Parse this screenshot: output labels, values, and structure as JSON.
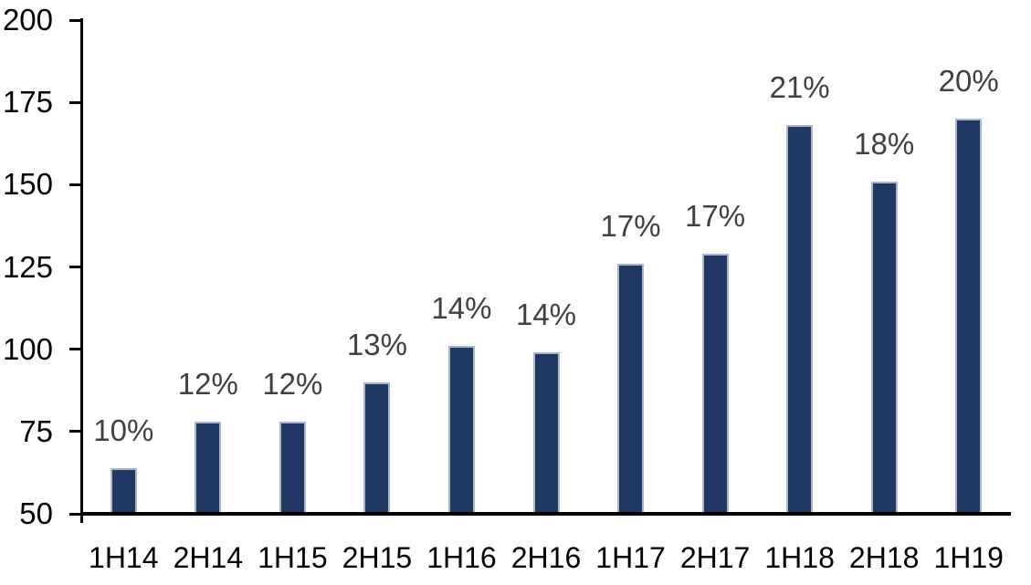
{
  "chart_data": {
    "type": "bar",
    "title": "",
    "xlabel": "",
    "ylabel": "",
    "categories": [
      "1H14",
      "2H14",
      "1H15",
      "2H15",
      "1H16",
      "2H16",
      "1H17",
      "2H17",
      "1H18",
      "2H18",
      "1H19"
    ],
    "values": [
      64,
      78,
      78,
      90,
      101,
      99,
      126,
      129,
      168,
      151,
      170
    ],
    "bar_labels": [
      "10%",
      "12%",
      "12%",
      "13%",
      "14%",
      "14%",
      "17%",
      "17%",
      "21%",
      "18%",
      "20%"
    ],
    "ylim": [
      50,
      200
    ],
    "y_ticks": [
      50,
      75,
      100,
      125,
      150,
      175,
      200
    ],
    "grid": "off",
    "legend": "none",
    "colors": {
      "bar_fill": "#1F3864",
      "bar_border": "#A9B7CD",
      "data_label": "#404040",
      "axis": "#000000",
      "background": "#FFFFFF"
    }
  }
}
